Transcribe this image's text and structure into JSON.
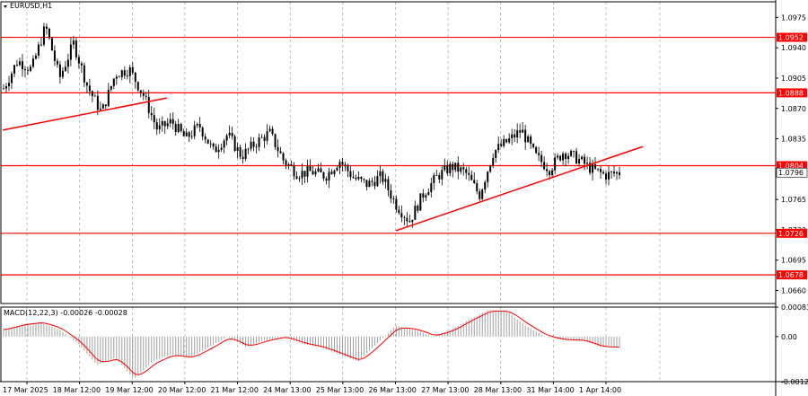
{
  "header": {
    "symbol": "EURUSD,H1",
    "indicator": "MACD(12,22,3) -0.00026 -0.00028"
  },
  "colors": {
    "level": "#ff0000",
    "grid": "#808080",
    "candle": "#000000",
    "macd_hist": "#a0a0a0",
    "macd_signal": "#ff0000",
    "price_tag_bg": "#ffffff"
  },
  "chart_data": [
    {
      "type": "candlestick",
      "title": "EURUSD,H1",
      "ylim": [
        1.0645,
        1.0993
      ],
      "y_ticks": [
        "1.0975",
        "1.0940",
        "1.0905",
        "1.0870",
        "1.0835",
        "1.0765",
        "1.0730",
        "1.0695",
        "1.0660"
      ],
      "x_ticks": [
        "17 Mar 2025",
        "18 Mar 12:00",
        "19 Mar 12:00",
        "20 Mar 12:00",
        "21 Mar 12:00",
        "24 Mar 13:00",
        "25 Mar 13:00",
        "26 Mar 13:00",
        "27 Mar 13:00",
        "28 Mar 13:00",
        "31 Mar 14:00",
        "1 Apr 14:00"
      ],
      "horizontal_levels": [
        "1.0952",
        "1.0888",
        "1.0804",
        "1.0726",
        "1.0678"
      ],
      "current_price": "1.0796",
      "trendlines": [
        {
          "from": [
            "17 Mar 2025",
            1.0845
          ],
          "to": [
            "20 Mar 00:00",
            1.0882
          ]
        },
        {
          "from": [
            "26 Mar 13:00",
            1.0729
          ],
          "to": [
            "1 Apr 22:00",
            1.0826
          ]
        }
      ],
      "price_path": [
        1.0893,
        1.0925,
        1.0915,
        1.0965,
        1.0905,
        1.0945,
        1.0895,
        1.0865,
        1.091,
        1.0915,
        1.0885,
        1.0845,
        1.0855,
        1.0835,
        1.085,
        1.082,
        1.084,
        1.0815,
        1.083,
        1.0842,
        1.081,
        1.0795,
        1.0797,
        1.0792,
        1.081,
        1.079,
        1.0782,
        1.0792,
        1.076,
        1.074,
        1.0772,
        1.0792,
        1.0803,
        1.0796,
        1.077,
        1.082,
        1.0832,
        1.0845,
        1.0815,
        1.08,
        1.082,
        1.0812,
        1.08,
        1.0793,
        1.0796
      ]
    },
    {
      "type": "histogram",
      "title": "MACD(12,22,3) -0.00026 -0.00028",
      "ylim": [
        -0.00127,
        0.00083
      ],
      "y_ticks": [
        "0.00083",
        "0.00",
        "-0.00127"
      ],
      "values_path": [
        0.0002,
        0.00035,
        0.0004,
        0.0002,
        -0.0002,
        -0.0008,
        -0.0006,
        -0.0012,
        -0.0007,
        -0.0005,
        -0.0006,
        -0.0003,
        0.0,
        -0.0003,
        -0.0001,
        0.0,
        -0.0002,
        -0.0003,
        -0.0005,
        -0.0007,
        -0.0002,
        0.0003,
        0.0002,
        0.0,
        0.0002,
        0.0005,
        0.00075,
        0.0007,
        0.0003,
        0.0,
        -0.0001,
        -0.0001,
        -0.0003,
        -0.0003
      ]
    }
  ]
}
